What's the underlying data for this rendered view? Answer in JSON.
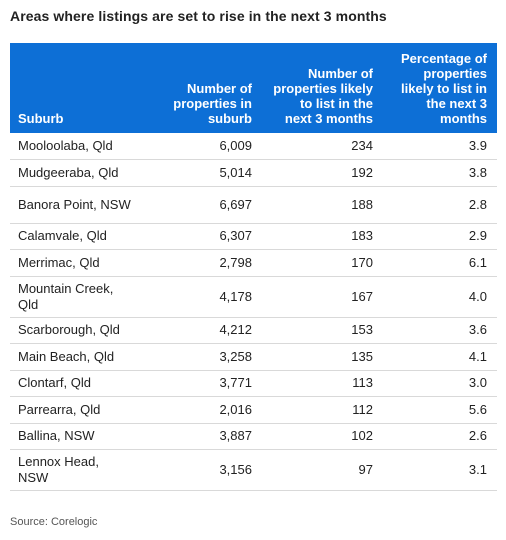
{
  "title": "Areas where listings are set to rise in the next 3 months",
  "table": {
    "headers": [
      "Suburb",
      "Number of properties in suburb",
      "Number of properties likely to list in the next 3 months",
      "Percentage of properties likely to list in the next 3 months"
    ],
    "rows": [
      {
        "suburb": "Mooloolaba, Qld",
        "properties": "6,009",
        "likely": "234",
        "pct": "3.9"
      },
      {
        "suburb": "Mudgeeraba, Qld",
        "properties": "5,014",
        "likely": "192",
        "pct": "3.8"
      },
      {
        "suburb": "Banora Point, NSW",
        "properties": "6,697",
        "likely": "188",
        "pct": "2.8"
      },
      {
        "suburb": "Calamvale, Qld",
        "properties": "6,307",
        "likely": "183",
        "pct": "2.9"
      },
      {
        "suburb": "Merrimac, Qld",
        "properties": "2,798",
        "likely": "170",
        "pct": "6.1"
      },
      {
        "suburb": "Mountain Creek, Qld",
        "properties": "4,178",
        "likely": "167",
        "pct": "4.0"
      },
      {
        "suburb": "Scarborough, Qld",
        "properties": "4,212",
        "likely": "153",
        "pct": "3.6"
      },
      {
        "suburb": "Main Beach, Qld",
        "properties": "3,258",
        "likely": "135",
        "pct": "4.1"
      },
      {
        "suburb": "Clontarf, Qld",
        "properties": "3,771",
        "likely": "113",
        "pct": "3.0"
      },
      {
        "suburb": "Parrearra, Qld",
        "properties": "2,016",
        "likely": "112",
        "pct": "5.6"
      },
      {
        "suburb": "Ballina, NSW",
        "properties": "3,887",
        "likely": "102",
        "pct": "2.6"
      },
      {
        "suburb": "Lennox Head, NSW",
        "properties": "3,156",
        "likely": "97",
        "pct": "3.1"
      }
    ]
  },
  "source": "Source: Corelogic",
  "colors": {
    "header_bg": "#0d6fd6",
    "header_text": "#ffffff",
    "row_border": "#d9d9d9"
  }
}
